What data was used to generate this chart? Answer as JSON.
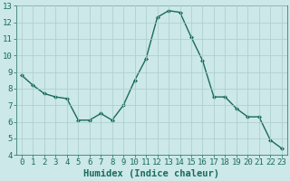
{
  "x": [
    0,
    1,
    2,
    3,
    4,
    5,
    6,
    7,
    8,
    9,
    10,
    11,
    12,
    13,
    14,
    15,
    16,
    17,
    18,
    19,
    20,
    21,
    22,
    23
  ],
  "y": [
    8.8,
    8.2,
    7.7,
    7.5,
    7.4,
    6.1,
    6.1,
    6.5,
    6.1,
    7.0,
    8.5,
    9.8,
    12.3,
    12.7,
    12.6,
    11.1,
    9.7,
    7.5,
    7.5,
    6.8,
    6.3,
    6.3,
    4.9,
    4.4
  ],
  "line_color": "#1a6b5a",
  "marker": "D",
  "marker_size": 2.0,
  "bg_color": "#cce8e8",
  "grid_color": "#aacccc",
  "xlabel": "Humidex (Indice chaleur)",
  "xlim": [
    -0.5,
    23.5
  ],
  "ylim": [
    4,
    13
  ],
  "yticks": [
    4,
    5,
    6,
    7,
    8,
    9,
    10,
    11,
    12,
    13
  ],
  "xticks": [
    0,
    1,
    2,
    3,
    4,
    5,
    6,
    7,
    8,
    9,
    10,
    11,
    12,
    13,
    14,
    15,
    16,
    17,
    18,
    19,
    20,
    21,
    22,
    23
  ],
  "xlabel_fontsize": 7.5,
  "tick_fontsize": 6.5,
  "linewidth": 1.0
}
